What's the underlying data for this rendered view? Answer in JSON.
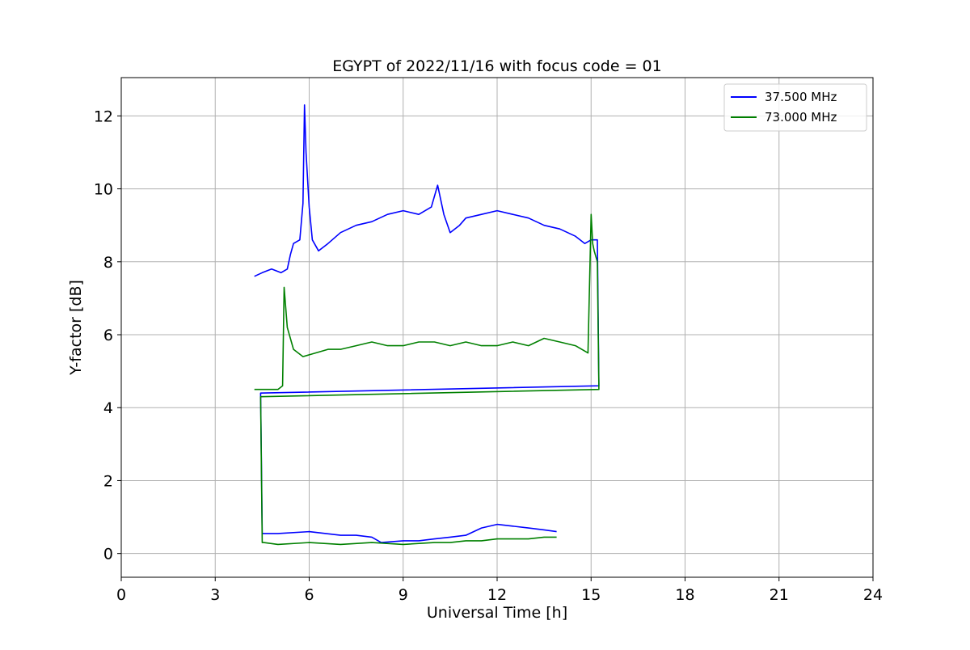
{
  "chart_data": {
    "type": "line",
    "title": "EGYPT of 2022/11/16 with focus code = 01",
    "xlabel": "Universal Time [h]",
    "ylabel": "Y-factor [dB]",
    "xlim": [
      0,
      24
    ],
    "ylim": [
      -0.65,
      13.05
    ],
    "xticks": [
      0,
      3,
      6,
      9,
      12,
      15,
      18,
      21,
      24
    ],
    "xtick_labels": [
      "0",
      "3",
      "6",
      "9",
      "12",
      "15",
      "18",
      "21",
      "24"
    ],
    "yticks": [
      0,
      2,
      4,
      6,
      8,
      10,
      12
    ],
    "ytick_labels": [
      "0",
      "2",
      "4",
      "6",
      "8",
      "10",
      "12"
    ],
    "grid": true,
    "legend_position": "top-right",
    "series": [
      {
        "name": "37.500 MHz",
        "color": "#0000ff",
        "x": [
          4.25,
          4.5,
          4.8,
          5.1,
          5.3,
          5.4,
          5.5,
          5.7,
          5.8,
          5.85,
          5.9,
          6.0,
          6.1,
          6.3,
          6.6,
          7.0,
          7.5,
          8.0,
          8.5,
          9.0,
          9.5,
          9.9,
          10.1,
          10.3,
          10.5,
          10.8,
          11.0,
          11.5,
          12.0,
          12.5,
          13.0,
          13.5,
          14.0,
          14.5,
          14.8,
          15.0,
          15.2,
          15.25,
          4.45,
          4.5,
          4.55,
          5.0,
          6.0,
          7.0,
          7.5,
          8.0,
          8.3,
          9.0,
          9.5,
          10.0,
          10.5,
          11.0,
          11.5,
          12.0,
          12.5,
          13.0,
          13.5,
          13.9
        ],
        "y": [
          7.6,
          7.7,
          7.8,
          7.7,
          7.8,
          8.2,
          8.5,
          8.6,
          9.6,
          12.3,
          11.0,
          9.5,
          8.6,
          8.3,
          8.5,
          8.8,
          9.0,
          9.1,
          9.3,
          9.4,
          9.3,
          9.5,
          10.1,
          9.3,
          8.8,
          9.0,
          9.2,
          9.3,
          9.4,
          9.3,
          9.2,
          9.0,
          8.9,
          8.7,
          8.5,
          8.6,
          8.6,
          4.6,
          4.4,
          0.55,
          0.55,
          0.55,
          0.6,
          0.5,
          0.5,
          0.45,
          0.3,
          0.35,
          0.35,
          0.4,
          0.45,
          0.5,
          0.7,
          0.8,
          0.75,
          0.7,
          0.65,
          0.6
        ]
      },
      {
        "name": "73.000 MHz",
        "color": "#008000",
        "x": [
          4.25,
          4.6,
          5.0,
          5.15,
          5.2,
          5.3,
          5.5,
          5.8,
          6.2,
          6.6,
          7.0,
          7.5,
          8.0,
          8.5,
          9.0,
          9.5,
          10.0,
          10.5,
          11.0,
          11.5,
          12.0,
          12.5,
          13.0,
          13.5,
          14.0,
          14.5,
          14.9,
          15.0,
          15.05,
          15.1,
          15.2,
          15.25,
          4.45,
          4.5,
          4.55,
          5.0,
          6.0,
          7.0,
          8.0,
          9.0,
          10.0,
          10.5,
          11.0,
          11.5,
          12.0,
          12.5,
          13.0,
          13.5,
          13.9
        ],
        "y": [
          4.5,
          4.5,
          4.5,
          4.6,
          7.3,
          6.2,
          5.6,
          5.4,
          5.5,
          5.6,
          5.6,
          5.7,
          5.8,
          5.7,
          5.7,
          5.8,
          5.8,
          5.7,
          5.8,
          5.7,
          5.7,
          5.8,
          5.7,
          5.9,
          5.8,
          5.7,
          5.5,
          9.3,
          8.5,
          8.3,
          8.0,
          4.5,
          4.3,
          0.3,
          0.3,
          0.25,
          0.3,
          0.25,
          0.3,
          0.25,
          0.3,
          0.3,
          0.35,
          0.35,
          0.4,
          0.4,
          0.4,
          0.45,
          0.45
        ]
      }
    ]
  }
}
